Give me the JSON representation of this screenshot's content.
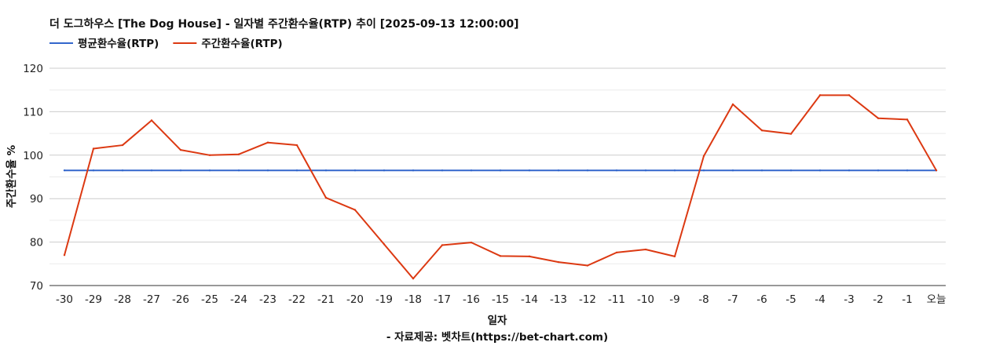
{
  "chart_data": {
    "type": "line",
    "title": "더 도그하우스 [The Dog House] - 일자별 주간환수율(RTP) 추이 [2025-09-13 12:00:00]",
    "xlabel": "일자",
    "ylabel": "주간환수율 %",
    "source": "- 자료제공: 벳차트(https://bet-chart.com)",
    "legend_position": "top-left",
    "grid": true,
    "ylim": [
      70,
      120
    ],
    "yticks": [
      70,
      80,
      90,
      100,
      110,
      120
    ],
    "categories": [
      "-30",
      "-29",
      "-28",
      "-27",
      "-26",
      "-25",
      "-24",
      "-23",
      "-22",
      "-21",
      "-20",
      "-19",
      "-18",
      "-17",
      "-16",
      "-15",
      "-14",
      "-13",
      "-12",
      "-11",
      "-10",
      "-9",
      "-8",
      "-7",
      "-6",
      "-5",
      "-4",
      "-3",
      "-2",
      "-1",
      "오늘"
    ],
    "series": [
      {
        "name": "평균환수율(RTP)",
        "color": "#3366cc",
        "values": [
          96.5,
          96.5,
          96.5,
          96.5,
          96.5,
          96.5,
          96.5,
          96.5,
          96.5,
          96.5,
          96.5,
          96.5,
          96.5,
          96.5,
          96.5,
          96.5,
          96.5,
          96.5,
          96.5,
          96.5,
          96.5,
          96.5,
          96.5,
          96.5,
          96.5,
          96.5,
          96.5,
          96.5,
          96.5,
          96.5,
          96.5
        ]
      },
      {
        "name": "주간환수율(RTP)",
        "color": "#dc3912",
        "values": [
          77.0,
          101.5,
          102.3,
          108.0,
          101.2,
          100.0,
          100.2,
          102.9,
          102.3,
          90.2,
          87.4,
          79.5,
          71.6,
          79.3,
          79.9,
          76.8,
          76.7,
          75.4,
          74.6,
          77.6,
          78.3,
          76.7,
          99.8,
          111.7,
          105.7,
          104.9,
          113.8,
          113.8,
          108.5,
          108.2,
          96.5
        ]
      }
    ]
  }
}
